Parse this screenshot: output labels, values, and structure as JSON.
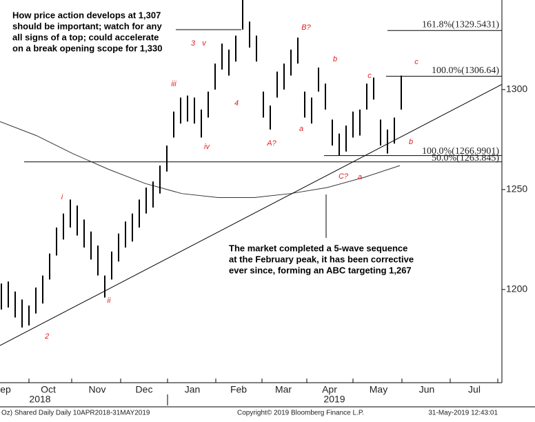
{
  "chart_data": {
    "type": "ohlc",
    "high": [
      1203,
      1204,
      1199,
      1195,
      1192,
      1201,
      1207,
      1218,
      1231,
      1238,
      1245,
      1242,
      1235,
      1229,
      1222,
      1207,
      1219,
      1228,
      1234,
      1238,
      1245,
      1251,
      1254,
      1262,
      1272,
      1289,
      1296,
      1297,
      1296,
      1290,
      1299,
      1313,
      1323,
      1320,
      1327,
      1345,
      1334,
      1327,
      1299,
      1292,
      1309,
      1313,
      1320,
      1326,
      1299,
      1296,
      1311,
      1303,
      1285,
      1278,
      1282,
      1289,
      1290,
      1303,
      1306,
      1285,
      1280,
      1286,
      1307
    ],
    "low": [
      1190,
      1191,
      1186,
      1181,
      1182,
      1188,
      1193,
      1205,
      1217,
      1225,
      1231,
      1227,
      1221,
      1215,
      1207,
      1196,
      1205,
      1214,
      1221,
      1224,
      1231,
      1238,
      1241,
      1248,
      1259,
      1276,
      1283,
      1284,
      1283,
      1276,
      1286,
      1300,
      1310,
      1307,
      1314,
      1330,
      1321,
      1314,
      1286,
      1280,
      1296,
      1300,
      1307,
      1313,
      1286,
      1283,
      1299,
      1290,
      1272,
      1267,
      1269,
      1276,
      1277,
      1290,
      1295,
      1272,
      1268,
      1273,
      1290
    ],
    "color": "#000000",
    "moving_average": [
      1284,
      1277,
      1268,
      1260,
      1253,
      1248,
      1246,
      1246,
      1248,
      1251,
      1256,
      1262
    ],
    "trendline": [
      1172,
      1302.6
    ],
    "levels": [
      {
        "value": 1329.5431,
        "label": "161.8%(1329.5431)"
      },
      {
        "value": 1306.64,
        "label": "100.0%(1306.64)"
      },
      {
        "value": 1266.9901,
        "label": "100.0%(1266.9901)"
      },
      {
        "value": 1263.845,
        "label": "50.0%(1263.845)"
      }
    ],
    "ylim": [
      1153.4,
      1344.8
    ],
    "yticks": [
      1200,
      1250,
      1300
    ],
    "months": [
      "ep",
      "Oct",
      "Nov",
      "Dec",
      "Jan",
      "Feb",
      "Mar",
      "Apr",
      "May",
      "Jun",
      "Jul"
    ],
    "years": [
      "2018",
      "2019"
    ],
    "wave_labels": [
      "2",
      "i",
      "ii",
      "iii",
      "iv",
      "3",
      "v",
      "4",
      "A?",
      "a",
      "b",
      "B?",
      "C?",
      "a",
      "b",
      "c",
      "c"
    ],
    "annotations": [
      [
        "How price action develops at 1,307",
        "should be important; watch for any",
        "all signs of  a top; could accelerate",
        "on a break opening scope for 1,330"
      ],
      [
        "The market completed  a 5-wave sequence",
        "at the February peak, it has been corrective",
        "ever since, forming  an ABC targeting 1,267"
      ]
    ],
    "footer": [
      "Oz) Shared Daily  Daily 10APR2018-31MAY2019",
      "Copyright© 2019 Bloomberg Finance L.P.",
      "31-May-2019 12:43:01"
    ]
  }
}
